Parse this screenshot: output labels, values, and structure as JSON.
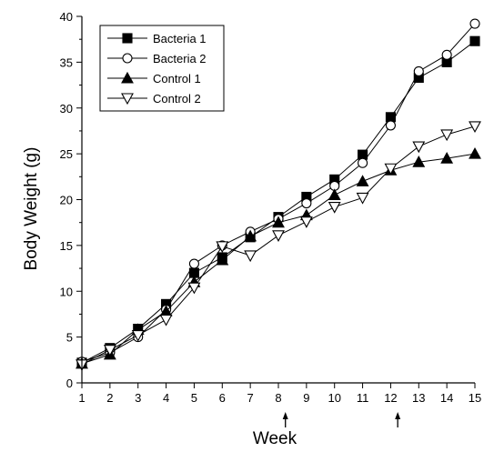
{
  "chart_data": {
    "type": "line",
    "xlabel": "Week",
    "ylabel": "Body Weight (g)",
    "xlim": [
      1,
      15
    ],
    "ylim": [
      0,
      40
    ],
    "x_ticks": [
      1,
      2,
      3,
      4,
      5,
      6,
      7,
      8,
      9,
      10,
      11,
      12,
      13,
      14,
      15
    ],
    "y_ticks": [
      0,
      5,
      10,
      15,
      20,
      25,
      30,
      35,
      40
    ],
    "x": [
      1,
      2,
      3,
      4,
      5,
      6,
      7,
      8,
      9,
      10,
      11,
      12,
      13,
      14,
      15
    ],
    "grid": false,
    "legend_position": "top-left",
    "arrow_markers_at_week": [
      8.25,
      12.25
    ],
    "series": [
      {
        "name": "Bacteria 1",
        "marker": "square-filled",
        "values": [
          2.2,
          3.8,
          5.9,
          8.6,
          12.0,
          13.7,
          15.9,
          18.1,
          20.3,
          22.2,
          24.9,
          29.0,
          33.3,
          35.0,
          37.3
        ]
      },
      {
        "name": "Bacteria 2",
        "marker": "circle-open",
        "values": [
          2.3,
          3.3,
          5.0,
          8.0,
          13.0,
          15.0,
          16.5,
          17.9,
          19.6,
          21.5,
          24.0,
          28.1,
          34.0,
          35.8,
          39.2
        ]
      },
      {
        "name": "Control 1",
        "marker": "triangle-up-filled",
        "values": [
          2.1,
          3.1,
          5.8,
          7.8,
          11.0,
          13.4,
          16.0,
          17.5,
          18.3,
          20.5,
          22.0,
          23.2,
          24.1,
          24.5,
          25.0
        ]
      },
      {
        "name": "Control 2",
        "marker": "triangle-down-open",
        "values": [
          2.0,
          3.6,
          5.2,
          6.9,
          10.4,
          14.9,
          13.9,
          16.1,
          17.6,
          19.2,
          20.2,
          23.4,
          25.8,
          27.1,
          28.0
        ]
      }
    ]
  }
}
